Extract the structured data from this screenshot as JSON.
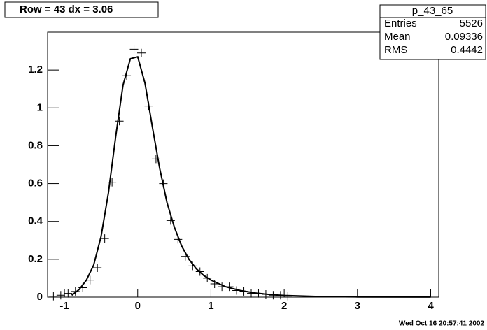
{
  "chart_data": {
    "type": "scatter",
    "title": "Row = 43 dx =   3.06",
    "x": [
      -1.15,
      -1.05,
      -0.95,
      -0.85,
      -0.75,
      -0.65,
      -0.55,
      -0.45,
      -0.35,
      -0.25,
      -0.15,
      -0.05,
      0.05,
      0.15,
      0.25,
      0.35,
      0.45,
      0.55,
      0.65,
      0.75,
      0.85,
      0.95,
      1.05,
      1.15,
      1.25,
      1.35,
      1.45,
      1.55,
      1.65,
      1.75,
      1.85,
      1.95,
      2.05
    ],
    "values": [
      0.005,
      0.01,
      0.02,
      0.03,
      0.05,
      0.09,
      0.155,
      0.31,
      0.607,
      0.93,
      1.17,
      1.31,
      1.29,
      1.01,
      0.73,
      0.6,
      0.405,
      0.305,
      0.215,
      0.165,
      0.135,
      0.1,
      0.07,
      0.055,
      0.055,
      0.035,
      0.03,
      0.02,
      0.02,
      0.015,
      0.01,
      0.01,
      0.005
    ],
    "fit": {
      "x": [
        -0.9,
        -0.8,
        -0.7,
        -0.6,
        -0.5,
        -0.4,
        -0.3,
        -0.2,
        -0.1,
        0,
        0.1,
        0.2,
        0.3,
        0.4,
        0.5,
        0.6,
        0.7,
        0.8,
        0.9,
        1.0,
        1.2,
        1.4,
        1.6,
        1.8,
        2.0,
        2.5,
        3,
        4
      ],
      "values": [
        0.01,
        0.04,
        0.09,
        0.17,
        0.32,
        0.55,
        0.85,
        1.12,
        1.26,
        1.27,
        1.13,
        0.9,
        0.68,
        0.5,
        0.37,
        0.27,
        0.2,
        0.15,
        0.115,
        0.09,
        0.055,
        0.035,
        0.022,
        0.014,
        0.009,
        0.003,
        0.001,
        0.0003
      ]
    },
    "xlim": [
      -1.23,
      4.11
    ],
    "ylim": [
      0,
      1.4
    ],
    "xticks": [
      -1,
      0,
      1,
      2,
      3,
      4
    ],
    "yticks": [
      0,
      0.2,
      0.4,
      0.6,
      0.8,
      1,
      1.2
    ],
    "color": "#000000",
    "stats": {
      "name": "p_43_65",
      "rows": [
        [
          "Entries",
          5526
        ],
        [
          "Mean",
          0.09336
        ],
        [
          "RMS",
          0.4442
        ]
      ]
    },
    "date": "Wed Oct 16 20:57:41 2002"
  }
}
